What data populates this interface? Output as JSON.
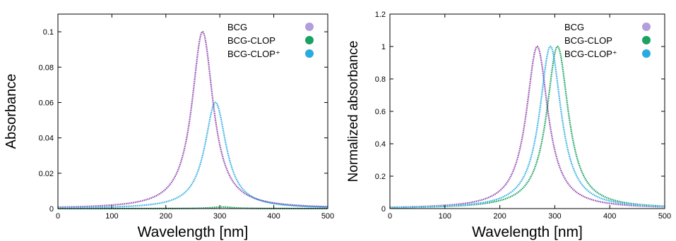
{
  "chart_data": [
    {
      "type": "line",
      "xlabel": "Wavelength [nm]",
      "ylabel": "Absorbance",
      "xlim": [
        0,
        500
      ],
      "ylim": [
        0,
        0.11
      ],
      "xticks": [
        0,
        100,
        200,
        300,
        400,
        500
      ],
      "yticks": [
        0,
        0.02,
        0.04,
        0.06,
        0.08,
        0.1
      ],
      "ytick_labels": [
        "0",
        "0.02",
        "0.04",
        "0.06",
        "0.08",
        "0.1"
      ],
      "grid": false,
      "legend_position": "top-right",
      "series": [
        {
          "name": "BCG",
          "color": "#8e44ad",
          "legend_color": "#b39ddb",
          "peak_x": 268,
          "peak_y": 0.1,
          "width": 24
        },
        {
          "name": "BCG-CLOP",
          "color": "#0f9d58",
          "legend_color": "#1aa260",
          "peak_x": 305,
          "peak_y": 0.0009,
          "width": 24
        },
        {
          "name": "BCG-CLOP⁺",
          "color": "#29abe2",
          "legend_color": "#29abe2",
          "peak_x": 292,
          "peak_y": 0.06,
          "width": 24
        }
      ]
    },
    {
      "type": "line",
      "xlabel": "Wavelength [nm]",
      "ylabel": "Normalized absorbance",
      "xlim": [
        0,
        500
      ],
      "ylim": [
        0,
        1.2
      ],
      "xticks": [
        0,
        100,
        200,
        300,
        400,
        500
      ],
      "yticks": [
        0,
        0.2,
        0.4,
        0.6,
        0.8,
        1,
        1.2
      ],
      "ytick_labels": [
        "0",
        "0.2",
        "0.4",
        "0.6",
        "0.8",
        "1",
        "1.2"
      ],
      "grid": false,
      "legend_position": "top-right",
      "series": [
        {
          "name": "BCG",
          "color": "#8e44ad",
          "legend_color": "#b39ddb",
          "peak_x": 268,
          "peak_y": 1.0,
          "width": 24
        },
        {
          "name": "BCG-CLOP",
          "color": "#0f9d58",
          "legend_color": "#1aa260",
          "peak_x": 305,
          "peak_y": 1.0,
          "width": 24
        },
        {
          "name": "BCG-CLOP⁺",
          "color": "#29abe2",
          "legend_color": "#29abe2",
          "peak_x": 292,
          "peak_y": 1.0,
          "width": 24
        }
      ]
    }
  ]
}
